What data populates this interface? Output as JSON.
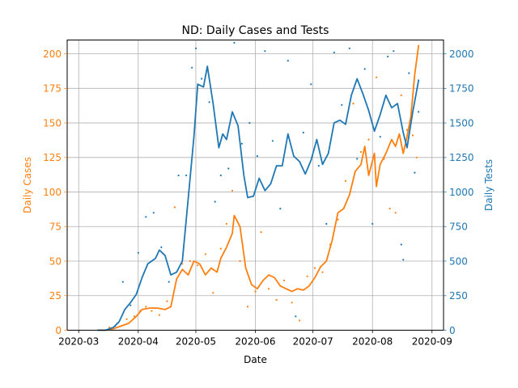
{
  "chart_data": {
    "type": "line",
    "title": "ND: Daily Cases and Tests",
    "xlabel": "Date",
    "x_ticks": [
      "2020-03",
      "2020-04",
      "2020-05",
      "2020-06",
      "2020-07",
      "2020-08",
      "2020-09"
    ],
    "xlim": [
      "2020-02-24",
      "2020-09-07"
    ],
    "grid": true,
    "left_axis": {
      "label": "Daily Cases",
      "color": "#ff7f0e",
      "ylim": [
        0,
        210
      ],
      "ticks": [
        0,
        25,
        50,
        75,
        100,
        125,
        150,
        175,
        200
      ]
    },
    "right_axis": {
      "label": "Daily Tests",
      "color": "#1f77b4",
      "ylim": [
        0,
        2100
      ],
      "ticks": [
        0,
        250,
        500,
        750,
        1000,
        1250,
        1500,
        1750,
        2000
      ]
    },
    "series": [
      {
        "axis": "left",
        "kind": "line",
        "color": "#ff7f0e",
        "points": [
          [
            "2020-03-11",
            0
          ],
          [
            "2020-03-15",
            0
          ],
          [
            "2020-03-19",
            1
          ],
          [
            "2020-03-23",
            3
          ],
          [
            "2020-03-27",
            5
          ],
          [
            "2020-03-31",
            10
          ],
          [
            "2020-04-03",
            15
          ],
          [
            "2020-04-07",
            16
          ],
          [
            "2020-04-11",
            16
          ],
          [
            "2020-04-15",
            15
          ],
          [
            "2020-04-18",
            17
          ],
          [
            "2020-04-21",
            37
          ],
          [
            "2020-04-24",
            44
          ],
          [
            "2020-04-27",
            40
          ],
          [
            "2020-04-30",
            50
          ],
          [
            "2020-05-03",
            48
          ],
          [
            "2020-05-06",
            40
          ],
          [
            "2020-05-09",
            45
          ],
          [
            "2020-05-12",
            42
          ],
          [
            "2020-05-14",
            52
          ],
          [
            "2020-05-17",
            60
          ],
          [
            "2020-05-20",
            70
          ],
          [
            "2020-05-21",
            83
          ],
          [
            "2020-05-24",
            75
          ],
          [
            "2020-05-27",
            45
          ],
          [
            "2020-05-30",
            33
          ],
          [
            "2020-06-02",
            30
          ],
          [
            "2020-06-05",
            36
          ],
          [
            "2020-06-08",
            40
          ],
          [
            "2020-06-11",
            38
          ],
          [
            "2020-06-14",
            32
          ],
          [
            "2020-06-17",
            30
          ],
          [
            "2020-06-20",
            28
          ],
          [
            "2020-06-23",
            30
          ],
          [
            "2020-06-26",
            29
          ],
          [
            "2020-06-29",
            32
          ],
          [
            "2020-07-02",
            38
          ],
          [
            "2020-07-05",
            46
          ],
          [
            "2020-07-08",
            50
          ],
          [
            "2020-07-11",
            65
          ],
          [
            "2020-07-14",
            85
          ],
          [
            "2020-07-17",
            88
          ],
          [
            "2020-07-20",
            98
          ],
          [
            "2020-07-23",
            115
          ],
          [
            "2020-07-26",
            120
          ],
          [
            "2020-07-28",
            133
          ],
          [
            "2020-07-30",
            112
          ],
          [
            "2020-08-02",
            128
          ],
          [
            "2020-08-03",
            104
          ],
          [
            "2020-08-05",
            120
          ],
          [
            "2020-08-08",
            128
          ],
          [
            "2020-08-11",
            138
          ],
          [
            "2020-08-13",
            133
          ],
          [
            "2020-08-15",
            142
          ],
          [
            "2020-08-17",
            128
          ],
          [
            "2020-08-19",
            140
          ],
          [
            "2020-08-21",
            155
          ],
          [
            "2020-08-23",
            185
          ],
          [
            "2020-08-25",
            206
          ]
        ]
      },
      {
        "axis": "right",
        "kind": "line",
        "color": "#1f77b4",
        "points": [
          [
            "2020-03-11",
            0
          ],
          [
            "2020-03-15",
            0
          ],
          [
            "2020-03-19",
            20
          ],
          [
            "2020-03-22",
            60
          ],
          [
            "2020-03-25",
            150
          ],
          [
            "2020-03-28",
            200
          ],
          [
            "2020-03-31",
            260
          ],
          [
            "2020-04-03",
            380
          ],
          [
            "2020-04-06",
            480
          ],
          [
            "2020-04-10",
            520
          ],
          [
            "2020-04-12",
            580
          ],
          [
            "2020-04-15",
            540
          ],
          [
            "2020-04-18",
            400
          ],
          [
            "2020-04-21",
            420
          ],
          [
            "2020-04-24",
            500
          ],
          [
            "2020-04-27",
            950
          ],
          [
            "2020-04-30",
            1400
          ],
          [
            "2020-05-02",
            1780
          ],
          [
            "2020-05-05",
            1760
          ],
          [
            "2020-05-07",
            1910
          ],
          [
            "2020-05-10",
            1640
          ],
          [
            "2020-05-13",
            1320
          ],
          [
            "2020-05-15",
            1420
          ],
          [
            "2020-05-17",
            1380
          ],
          [
            "2020-05-20",
            1580
          ],
          [
            "2020-05-23",
            1480
          ],
          [
            "2020-05-26",
            1120
          ],
          [
            "2020-05-28",
            960
          ],
          [
            "2020-05-31",
            970
          ],
          [
            "2020-06-03",
            1100
          ],
          [
            "2020-06-06",
            1010
          ],
          [
            "2020-06-09",
            1060
          ],
          [
            "2020-06-12",
            1190
          ],
          [
            "2020-06-15",
            1190
          ],
          [
            "2020-06-18",
            1420
          ],
          [
            "2020-06-21",
            1260
          ],
          [
            "2020-06-24",
            1220
          ],
          [
            "2020-06-27",
            1130
          ],
          [
            "2020-06-30",
            1230
          ],
          [
            "2020-07-03",
            1380
          ],
          [
            "2020-07-06",
            1200
          ],
          [
            "2020-07-09",
            1280
          ],
          [
            "2020-07-12",
            1500
          ],
          [
            "2020-07-15",
            1520
          ],
          [
            "2020-07-18",
            1490
          ],
          [
            "2020-07-21",
            1700
          ],
          [
            "2020-07-24",
            1820
          ],
          [
            "2020-07-27",
            1710
          ],
          [
            "2020-07-30",
            1590
          ],
          [
            "2020-08-02",
            1440
          ],
          [
            "2020-08-05",
            1560
          ],
          [
            "2020-08-08",
            1700
          ],
          [
            "2020-08-11",
            1610
          ],
          [
            "2020-08-14",
            1640
          ],
          [
            "2020-08-17",
            1430
          ],
          [
            "2020-08-19",
            1320
          ],
          [
            "2020-08-22",
            1580
          ],
          [
            "2020-08-25",
            1810
          ]
        ]
      },
      {
        "axis": "left",
        "kind": "scatter",
        "color": "#ff7f0e",
        "points": [
          [
            "2020-03-17",
            2
          ],
          [
            "2020-03-21",
            5
          ],
          [
            "2020-03-26",
            8
          ],
          [
            "2020-03-30",
            10
          ],
          [
            "2020-04-02",
            14
          ],
          [
            "2020-04-05",
            17
          ],
          [
            "2020-04-08",
            14
          ],
          [
            "2020-04-12",
            11
          ],
          [
            "2020-04-16",
            21
          ],
          [
            "2020-04-20",
            89
          ],
          [
            "2020-04-24",
            48
          ],
          [
            "2020-04-28",
            50
          ],
          [
            "2020-05-02",
            47
          ],
          [
            "2020-05-06",
            55
          ],
          [
            "2020-05-10",
            27
          ],
          [
            "2020-05-14",
            59
          ],
          [
            "2020-05-17",
            77
          ],
          [
            "2020-05-20",
            101
          ],
          [
            "2020-05-24",
            50
          ],
          [
            "2020-05-28",
            17
          ],
          [
            "2020-06-01",
            28
          ],
          [
            "2020-06-04",
            71
          ],
          [
            "2020-06-08",
            30
          ],
          [
            "2020-06-12",
            22
          ],
          [
            "2020-06-16",
            36
          ],
          [
            "2020-06-20",
            20
          ],
          [
            "2020-06-24",
            7
          ],
          [
            "2020-06-28",
            39
          ],
          [
            "2020-07-02",
            45
          ],
          [
            "2020-07-06",
            42
          ],
          [
            "2020-07-10",
            62
          ],
          [
            "2020-07-14",
            80
          ],
          [
            "2020-07-18",
            108
          ],
          [
            "2020-07-22",
            164
          ],
          [
            "2020-07-26",
            129
          ],
          [
            "2020-07-30",
            138
          ],
          [
            "2020-08-03",
            183
          ],
          [
            "2020-08-07",
            124
          ],
          [
            "2020-08-10",
            88
          ],
          [
            "2020-08-13",
            85
          ],
          [
            "2020-08-16",
            170
          ],
          [
            "2020-08-19",
            145
          ],
          [
            "2020-08-22",
            141
          ],
          [
            "2020-08-24",
            125
          ]
        ]
      },
      {
        "axis": "right",
        "kind": "scatter",
        "color": "#1f77b4",
        "points": [
          [
            "2020-03-20",
            30
          ],
          [
            "2020-03-24",
            350
          ],
          [
            "2020-03-28",
            180
          ],
          [
            "2020-04-01",
            560
          ],
          [
            "2020-04-05",
            820
          ],
          [
            "2020-04-09",
            850
          ],
          [
            "2020-04-13",
            600
          ],
          [
            "2020-04-17",
            350
          ],
          [
            "2020-04-22",
            1120
          ],
          [
            "2020-04-26",
            1120
          ],
          [
            "2020-04-29",
            1900
          ],
          [
            "2020-05-01",
            2040
          ],
          [
            "2020-05-04",
            1820
          ],
          [
            "2020-05-08",
            1650
          ],
          [
            "2020-05-11",
            930
          ],
          [
            "2020-05-14",
            1120
          ],
          [
            "2020-05-18",
            1170
          ],
          [
            "2020-05-21",
            2080
          ],
          [
            "2020-05-25",
            1350
          ],
          [
            "2020-05-29",
            1500
          ],
          [
            "2020-06-02",
            1260
          ],
          [
            "2020-06-06",
            2020
          ],
          [
            "2020-06-10",
            1370
          ],
          [
            "2020-06-14",
            880
          ],
          [
            "2020-06-18",
            1950
          ],
          [
            "2020-06-22",
            100
          ],
          [
            "2020-06-26",
            1430
          ],
          [
            "2020-06-30",
            1780
          ],
          [
            "2020-07-04",
            1190
          ],
          [
            "2020-07-08",
            770
          ],
          [
            "2020-07-12",
            2010
          ],
          [
            "2020-07-16",
            1630
          ],
          [
            "2020-07-20",
            2040
          ],
          [
            "2020-07-24",
            1240
          ],
          [
            "2020-07-28",
            1890
          ],
          [
            "2020-08-01",
            770
          ],
          [
            "2020-08-05",
            1400
          ],
          [
            "2020-08-09",
            1980
          ],
          [
            "2020-08-12",
            2020
          ],
          [
            "2020-08-16",
            620
          ],
          [
            "2020-08-17",
            510
          ],
          [
            "2020-08-20",
            1860
          ],
          [
            "2020-08-23",
            1140
          ],
          [
            "2020-08-25",
            1580
          ]
        ]
      }
    ]
  }
}
